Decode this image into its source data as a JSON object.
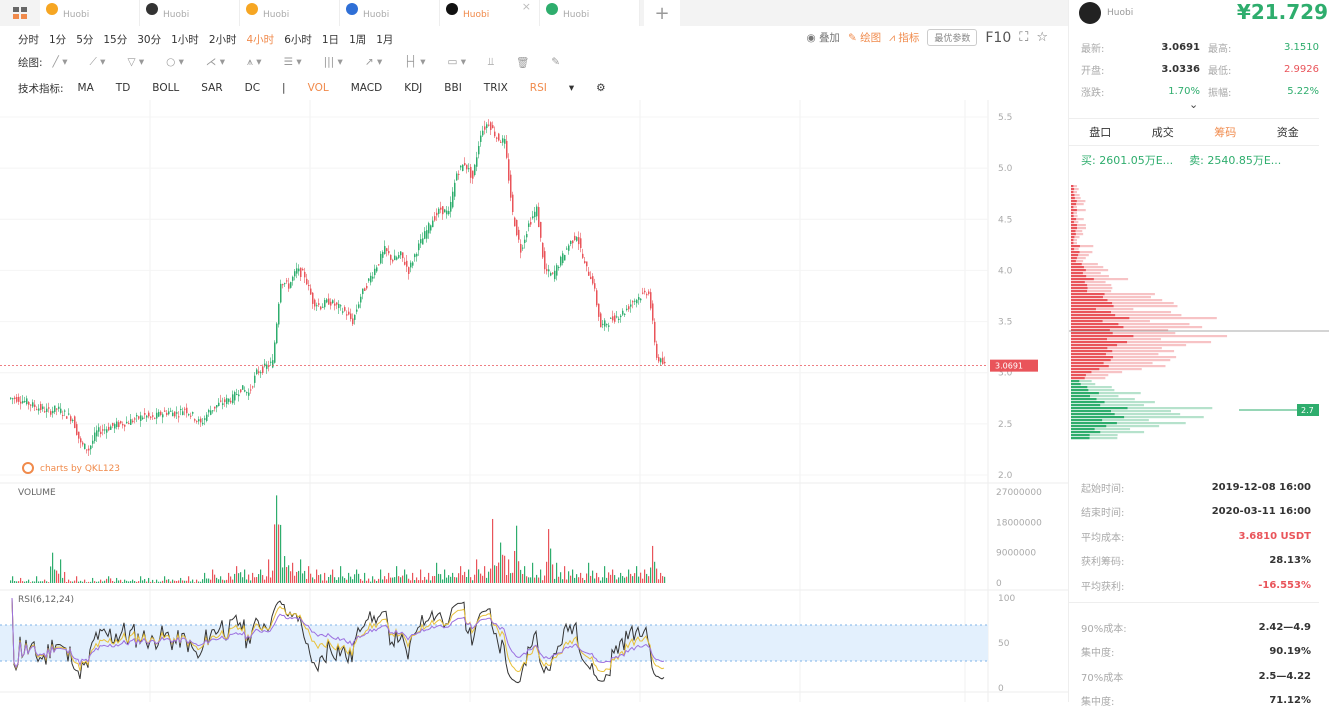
{
  "tabs": [
    {
      "exchange": "Huobi",
      "color": "#f6a623"
    },
    {
      "exchange": "Huobi",
      "color": "#333"
    },
    {
      "exchange": "Huobi",
      "color": "#f6a623"
    },
    {
      "exchange": "Huobi",
      "color": "#2f6fd6"
    },
    {
      "exchange": "Huobi",
      "color": "#111",
      "active": true
    },
    {
      "exchange": "Huobi",
      "color": "#2ead6d"
    }
  ],
  "plus": "+",
  "close": "×",
  "intervals": [
    "分时",
    "1分",
    "5分",
    "15分",
    "30分",
    "1小时",
    "2小时",
    "4小时",
    "6小时",
    "1日",
    "1周",
    "1月"
  ],
  "active_interval": "4小时",
  "draw_label": "绘图:",
  "draw_tools": [
    "╱ ▾",
    "⟋ ▾",
    "▽ ▾",
    "○ ▾",
    "⋌ ▾",
    "⩚ ▾",
    "☰ ▾",
    "||| ▾",
    "↗ ▾",
    "├┤ ▾",
    "▭ ▾",
    "⫫",
    "🗑",
    "✎"
  ],
  "indicator_label": "技术指标:",
  "indicators": [
    "MA",
    "TD",
    "BOLL",
    "SAR",
    "DC",
    "|",
    "VOL",
    "MACD",
    "KDJ",
    "BBI",
    "TRIX",
    "RSI",
    "▾",
    "⚙"
  ],
  "active_indicators": [
    "VOL",
    "RSI"
  ],
  "toolbar": {
    "overlay": "叠加",
    "draw": "绘图",
    "indicator": "指标",
    "optimize": "最优参数",
    "f10": "F10"
  },
  "watermark": "charts by QKL123",
  "volume_label": "VOLUME",
  "rsi_label": "RSI(6,12,24)",
  "last_price_tag": "3.0691",
  "side": {
    "exchange": "Huobi",
    "price": "¥21.729",
    "stats": [
      [
        "最新:",
        "3.0691",
        "最高:",
        "3.1510",
        "#2ead6d"
      ],
      [
        "开盘:",
        "3.0336",
        "最低:",
        "2.9926",
        "#e9545a"
      ],
      [
        "涨跌:",
        "1.70%",
        "振幅:",
        "5.22%",
        "#2ead6d"
      ]
    ],
    "tabs": [
      "盘口",
      "成交",
      "筹码",
      "资金"
    ],
    "active_tab": "筹码",
    "buy": "买: 2601.05万E...",
    "sell": "卖: 2540.85万E...",
    "chip_tag": "2.7",
    "info1": [
      [
        "起始时间:",
        "2019-12-08 16:00",
        ""
      ],
      [
        "结束时间:",
        "2020-03-11 16:00",
        ""
      ],
      [
        "平均成本:",
        "3.6810 USDT",
        "red"
      ],
      [
        "获利筹码:",
        "28.13%",
        ""
      ],
      [
        "平均获利:",
        "-16.553%",
        "red"
      ]
    ],
    "info2": [
      [
        "90%成本:",
        "2.42—4.9"
      ],
      [
        "集中度:",
        "90.19%"
      ],
      [
        "70%成本",
        "2.5—4.22"
      ],
      [
        "集中度:",
        "71.12%"
      ]
    ]
  },
  "chart_data": {
    "type": "candlestick",
    "price_ticks": [
      "5.5",
      "5.0",
      "4.5",
      "4.0",
      "3.5",
      "3.0",
      "2.5",
      "2.0"
    ],
    "ylim": [
      2.0,
      5.5
    ],
    "closes": [
      2.75,
      2.72,
      2.68,
      2.65,
      2.62,
      2.65,
      2.6,
      2.55,
      2.3,
      2.25,
      2.42,
      2.45,
      2.48,
      2.5,
      2.52,
      2.55,
      2.58,
      2.55,
      2.6,
      2.62,
      2.6,
      2.65,
      2.58,
      2.5,
      2.62,
      2.68,
      2.72,
      2.75,
      2.85,
      2.8,
      3.0,
      3.05,
      3.1,
      3.9,
      3.85,
      4.0,
      3.95,
      3.7,
      3.65,
      3.7,
      3.65,
      3.6,
      3.5,
      3.75,
      3.9,
      4.05,
      4.2,
      4.1,
      4.15,
      4.0,
      4.2,
      4.35,
      4.5,
      4.6,
      4.55,
      4.95,
      5.05,
      4.9,
      5.35,
      5.45,
      5.3,
      5.25,
      4.55,
      4.2,
      4.45,
      4.6,
      4.0,
      3.95,
      4.1,
      4.25,
      4.35,
      4.05,
      3.9,
      3.45,
      3.5,
      3.55,
      3.6,
      3.7,
      3.75,
      3.8,
      3.15,
      3.07
    ],
    "volume_ticks": [
      "27000000",
      "18000000",
      "9000000",
      "0"
    ],
    "volume_max": 27000000,
    "volumes_m": [
      2,
      1.5,
      1,
      2,
      1,
      9,
      7,
      1,
      2,
      1,
      1.5,
      1,
      2,
      1.5,
      1,
      1,
      2,
      1.5,
      1,
      2,
      1,
      1.5,
      2,
      1,
      3,
      4,
      2,
      3,
      5,
      4,
      3,
      4,
      7,
      26,
      8,
      6,
      7,
      5,
      4,
      3,
      4,
      5,
      3,
      4,
      3,
      2,
      4,
      3,
      5,
      4,
      3,
      4,
      3,
      6,
      4,
      3,
      5,
      4,
      7,
      5,
      19,
      12,
      7,
      17,
      5,
      6,
      4,
      16,
      6,
      5,
      4,
      3,
      6,
      3,
      5,
      4,
      3,
      4,
      5,
      4,
      11,
      3
    ],
    "rsi_ticks": [
      "100",
      "50",
      "0"
    ],
    "rsi_band": [
      30,
      70
    ]
  }
}
